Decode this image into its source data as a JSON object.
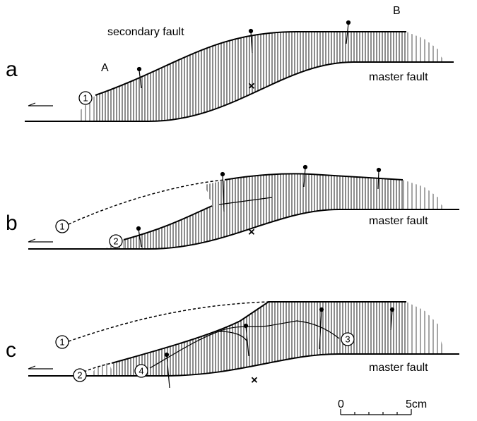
{
  "panels": [
    {
      "label": "a",
      "secondary_fault": "secondary fault",
      "master_fault": "master fault",
      "point_a": "A",
      "point_b": "B",
      "markers": [
        "1"
      ]
    },
    {
      "label": "b",
      "master_fault": "master fault",
      "markers": [
        "1",
        "2"
      ]
    },
    {
      "label": "c",
      "master_fault": "master fault",
      "markers": [
        "1",
        "2",
        "3",
        "4"
      ]
    }
  ],
  "scale": {
    "start": "0",
    "end": "5cm"
  }
}
